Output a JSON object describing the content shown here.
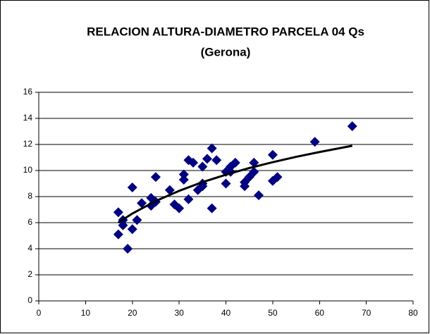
{
  "chart_data": {
    "type": "scatter",
    "title": "RELACION ALTURA-DIAMETRO PARCELA 04 Qs",
    "subtitle": "(Gerona)",
    "x": [
      17,
      17,
      18,
      18,
      19,
      20,
      20,
      21,
      22,
      24,
      24,
      25,
      25,
      28,
      29,
      30,
      31,
      31,
      32,
      32,
      33,
      34,
      35,
      35,
      35,
      36,
      37,
      37,
      38,
      40,
      40,
      41,
      41,
      42,
      44,
      44,
      45,
      46,
      46,
      47,
      50,
      50,
      51,
      59,
      67
    ],
    "values": [
      6.8,
      5.1,
      6.2,
      5.8,
      4.0,
      8.7,
      5.5,
      6.2,
      7.5,
      7.3,
      7.9,
      7.6,
      9.5,
      8.5,
      7.4,
      7.1,
      9.7,
      9.3,
      7.8,
      10.8,
      10.6,
      8.5,
      8.8,
      9.0,
      10.3,
      10.9,
      11.7,
      7.1,
      10.8,
      9.9,
      9.0,
      9.9,
      10.3,
      10.6,
      8.8,
      9.1,
      9.5,
      10.6,
      9.9,
      8.1,
      11.2,
      9.2,
      9.5,
      12.2,
      13.4
    ],
    "color": "#000080",
    "trendline": {
      "x": [
        17,
        20,
        25,
        30,
        35,
        40,
        45,
        50,
        55,
        60,
        67
      ],
      "values": [
        6.0,
        6.7,
        7.66,
        8.44,
        9.11,
        9.68,
        10.19,
        10.64,
        11.05,
        11.42,
        11.9
      ],
      "color": "#000000"
    },
    "xlim": [
      0,
      80
    ],
    "xticks": [
      0,
      10,
      20,
      30,
      40,
      50,
      60,
      70,
      80
    ],
    "ylim": [
      0,
      16
    ],
    "yticks": [
      0,
      2,
      4,
      6,
      8,
      10,
      12,
      14,
      16
    ],
    "grid": true
  }
}
